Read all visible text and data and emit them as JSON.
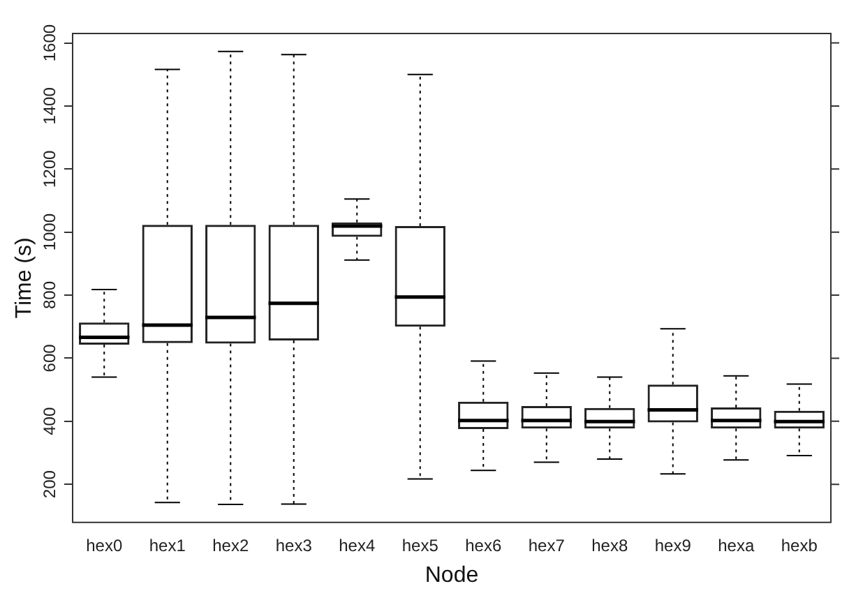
{
  "chart_data": {
    "type": "box",
    "xlabel": "Node",
    "ylabel": "Time (s)",
    "categories": [
      "hex0",
      "hex1",
      "hex2",
      "hex3",
      "hex4",
      "hex5",
      "hex6",
      "hex7",
      "hex8",
      "hex9",
      "hexa",
      "hexb"
    ],
    "boxes": [
      {
        "low": 540,
        "q1": 643,
        "median": 666,
        "q3": 713,
        "high": 818
      },
      {
        "low": 142,
        "q1": 648,
        "median": 705,
        "q3": 1023,
        "high": 1516
      },
      {
        "low": 136,
        "q1": 646,
        "median": 729,
        "q3": 1023,
        "high": 1573
      },
      {
        "low": 137,
        "q1": 656,
        "median": 774,
        "q3": 1023,
        "high": 1563
      },
      {
        "low": 911,
        "q1": 985,
        "median": 1019,
        "q3": 1031,
        "high": 1105
      },
      {
        "low": 217,
        "q1": 700,
        "median": 794,
        "q3": 1019,
        "high": 1500
      },
      {
        "low": 244,
        "q1": 375,
        "median": 402,
        "q3": 462,
        "high": 591
      },
      {
        "low": 270,
        "q1": 377,
        "median": 402,
        "q3": 448,
        "high": 553
      },
      {
        "low": 280,
        "q1": 377,
        "median": 399,
        "q3": 442,
        "high": 540
      },
      {
        "low": 233,
        "q1": 396,
        "median": 436,
        "q3": 516,
        "high": 693
      },
      {
        "low": 277,
        "q1": 377,
        "median": 402,
        "q3": 444,
        "high": 544
      },
      {
        "low": 291,
        "q1": 377,
        "median": 399,
        "q3": 433,
        "high": 518
      }
    ],
    "ylim": [
      79,
      1630
    ],
    "yticks": [
      200,
      400,
      600,
      800,
      1000,
      1200,
      1400,
      1600
    ],
    "grid": false,
    "legend": false
  }
}
